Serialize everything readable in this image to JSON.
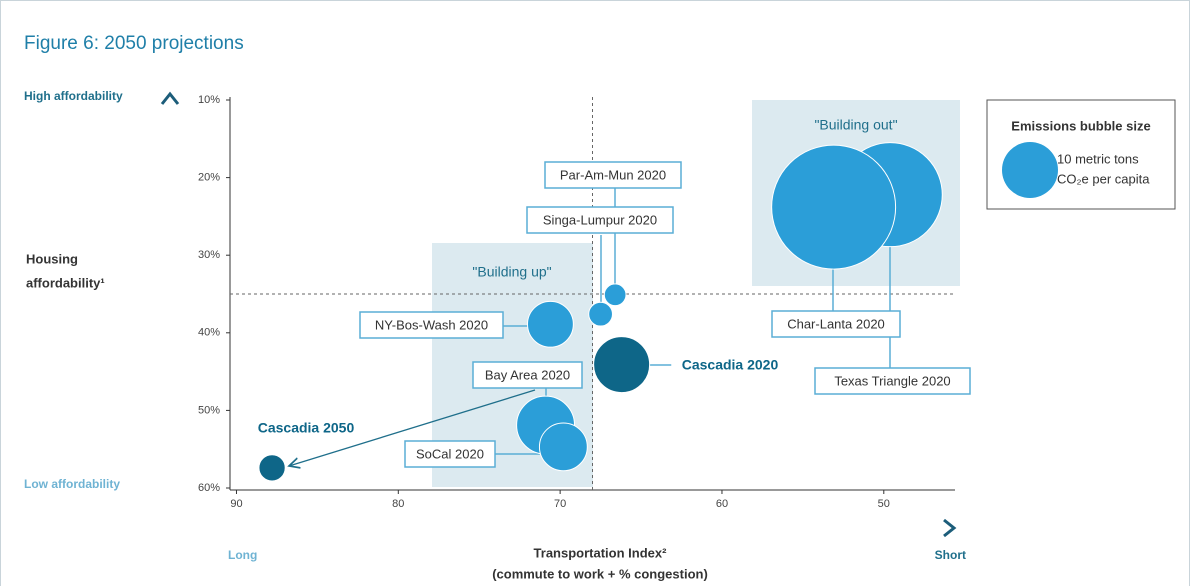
{
  "chart_data": {
    "type": "bubble",
    "title": "Figure 6: 2050 projections",
    "y_label_lines": [
      "Housing",
      "affordability¹"
    ],
    "y_top_label": "High affordability",
    "y_bottom_label": "Low affordability",
    "x_label_lines": [
      "Transportation Index²",
      "(commute to work + % congestion)"
    ],
    "x_left_label": "Long",
    "x_right_label": "Short",
    "annotations": [
      "\"Building up\"",
      "\"Building out\""
    ],
    "legend_title": "Emissions bubble size",
    "legend_label_lines": [
      "10 metric tons",
      "CO₂e per capita"
    ],
    "legend_size": 10,
    "xlim": [
      90.4,
      45.6
    ],
    "xticks": [
      90,
      80,
      70,
      60,
      50
    ],
    "ylim": [
      10,
      60
    ],
    "yticks": [
      {
        "value": 10,
        "label": "10%"
      },
      {
        "value": 20,
        "label": "20%"
      },
      {
        "value": 30,
        "label": "30%"
      },
      {
        "value": 40,
        "label": "40%"
      },
      {
        "value": 50,
        "label": "50%"
      },
      {
        "value": 60,
        "label": "60%"
      }
    ],
    "x_reference": 68,
    "y_reference": 35,
    "color": "#2b9ed8",
    "highlight_color": "#0e6688",
    "points": [
      {
        "name": "Par-Am-Mun 2020",
        "x": 66.6,
        "y": 35.1,
        "size": 1.5
      },
      {
        "name": "Singa-Lumpur 2020",
        "x": 67.5,
        "y": 37.6,
        "size": 1.8
      },
      {
        "name": "NY-Bos-Wash 2020",
        "x": 70.6,
        "y": 38.9,
        "size": 6.7
      },
      {
        "name": "Bay Area 2020",
        "x": 70.9,
        "y": 51.9,
        "size": 10.7
      },
      {
        "name": "SoCal 2020",
        "x": 69.8,
        "y": 54.7,
        "size": 7.3
      },
      {
        "name": "Cascadia 2020",
        "x": 66.2,
        "y": 44.1,
        "size": 10,
        "highlight": true
      },
      {
        "name": "Cascadia 2050",
        "x": 87.8,
        "y": 57.4,
        "size": 2.2,
        "highlight": true
      },
      {
        "name": "Texas Triangle 2020",
        "x": 49.6,
        "y": 22.2,
        "size": 34.5
      },
      {
        "name": "Char-Lanta 2020",
        "x": 53.1,
        "y": 23.8,
        "size": 49
      }
    ]
  }
}
